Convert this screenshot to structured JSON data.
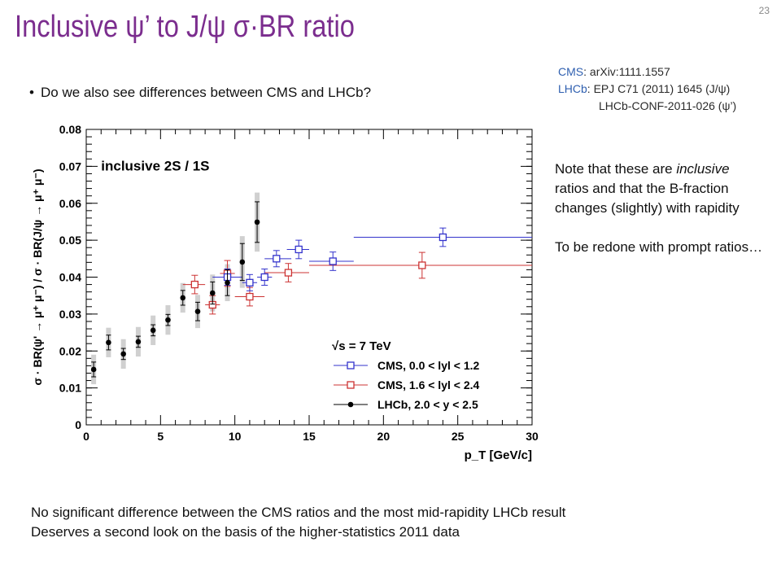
{
  "slide": {
    "title_pre": "Inclusive ",
    "title_psi": "ψ",
    "title_mid": "’ to J/",
    "title_psi2": "ψ",
    "title_sigma": " σ",
    "title_post": "·BR ratio",
    "number": "23",
    "bullet": "Do we also see differences between CMS and LHCb?",
    "refs": {
      "cms_key": "CMS",
      "cms_val": ": arXiv:1111.1557",
      "lhcb_key": "LHCb",
      "lhcb_val": ": EPJ C71 (2011) 1645 (J/ψ)",
      "lhcb_val2": "LHCb-CONF-2011-026 (ψ’)"
    },
    "note_line1_a": "Note that these are ",
    "note_line1_em": "inclusive",
    "note_line1_b": " ratios and that the B-fraction changes (slightly) with rapidity",
    "note_line2": "To be redone with prompt ratios…",
    "bottom_line1": "No significant difference between the CMS ratios and the most mid-rapidity LHCb result",
    "bottom_line2": "Deserves a second look on the basis of the higher-statistics 2011 data"
  },
  "chart_data": {
    "type": "scatter",
    "title": "inclusive 2S / 1S",
    "xlabel": "p_T [GeV/c]",
    "ylabel": "σ · BR(ψ' → μ⁺ μ⁻) / σ · BR(J/ψ → μ⁺ μ⁻)",
    "xlim": [
      0,
      30
    ],
    "ylim": [
      0,
      0.08
    ],
    "x_ticks": [
      "0",
      "5",
      "10",
      "15",
      "20",
      "25",
      "30"
    ],
    "y_ticks": [
      "0",
      "0.01",
      "0.02",
      "0.03",
      "0.04",
      "0.05",
      "0.06",
      "0.07",
      "0.08"
    ],
    "legend_header": "√s = 7 TeV",
    "legend_position": "bottom-right",
    "colors": {
      "cms_central": "#3333cc",
      "cms_forward": "#cc3333",
      "lhcb": "#000000",
      "syst": "#d0d0d0"
    },
    "series": [
      {
        "name": "CMS, 0.0 < lyl < 1.2",
        "marker": "open-square",
        "points": [
          {
            "x": 9.5,
            "xlo": 8.5,
            "xhi": 10.5,
            "y": 0.04,
            "err": 0.0022
          },
          {
            "x": 11.0,
            "xlo": 10.5,
            "xhi": 11.5,
            "y": 0.0385,
            "err": 0.0022
          },
          {
            "x": 12.0,
            "xlo": 11.5,
            "xhi": 12.5,
            "y": 0.04,
            "err": 0.0022
          },
          {
            "x": 12.8,
            "xlo": 12.0,
            "xhi": 13.8,
            "y": 0.045,
            "err": 0.0022
          },
          {
            "x": 14.3,
            "xlo": 13.5,
            "xhi": 15.0,
            "y": 0.0475,
            "err": 0.0025
          },
          {
            "x": 16.6,
            "xlo": 15.0,
            "xhi": 18.0,
            "y": 0.0443,
            "err": 0.0025
          },
          {
            "x": 24.0,
            "xlo": 18.0,
            "xhi": 30.0,
            "y": 0.0508,
            "err": 0.0025
          }
        ]
      },
      {
        "name": "CMS, 1.6 < lyl < 2.4",
        "marker": "open-square",
        "points": [
          {
            "x": 7.3,
            "xlo": 6.5,
            "xhi": 8.0,
            "y": 0.038,
            "err": 0.0025
          },
          {
            "x": 8.5,
            "xlo": 8.0,
            "xhi": 9.0,
            "y": 0.0325,
            "err": 0.0025
          },
          {
            "x": 9.5,
            "xlo": 9.0,
            "xhi": 10.0,
            "y": 0.041,
            "err": 0.0035
          },
          {
            "x": 11.0,
            "xlo": 10.0,
            "xhi": 12.0,
            "y": 0.0347,
            "err": 0.0025
          },
          {
            "x": 13.6,
            "xlo": 12.0,
            "xhi": 15.0,
            "y": 0.0412,
            "err": 0.0025
          },
          {
            "x": 22.6,
            "xlo": 15.0,
            "xhi": 30.0,
            "y": 0.0432,
            "err": 0.0035
          }
        ]
      },
      {
        "name": "LHCb, 2.0 < y < 2.5",
        "marker": "filled-circle",
        "points": [
          {
            "x": 0.5,
            "y": 0.015,
            "err": 0.002,
            "syst": 0.004
          },
          {
            "x": 1.5,
            "y": 0.0223,
            "err": 0.002,
            "syst": 0.004
          },
          {
            "x": 2.5,
            "y": 0.0192,
            "err": 0.0015,
            "syst": 0.004
          },
          {
            "x": 3.5,
            "y": 0.0225,
            "err": 0.0015,
            "syst": 0.004
          },
          {
            "x": 4.5,
            "y": 0.0256,
            "err": 0.0015,
            "syst": 0.004
          },
          {
            "x": 5.5,
            "y": 0.0284,
            "err": 0.0015,
            "syst": 0.004
          },
          {
            "x": 6.5,
            "y": 0.0344,
            "err": 0.002,
            "syst": 0.004
          },
          {
            "x": 7.5,
            "y": 0.0307,
            "err": 0.0025,
            "syst": 0.0045
          },
          {
            "x": 8.5,
            "y": 0.0357,
            "err": 0.003,
            "syst": 0.005
          },
          {
            "x": 9.5,
            "y": 0.0385,
            "err": 0.0035,
            "syst": 0.005
          },
          {
            "x": 10.5,
            "y": 0.0441,
            "err": 0.005,
            "syst": 0.007
          },
          {
            "x": 11.5,
            "y": 0.0549,
            "err": 0.0055,
            "syst": 0.008
          }
        ]
      }
    ]
  }
}
